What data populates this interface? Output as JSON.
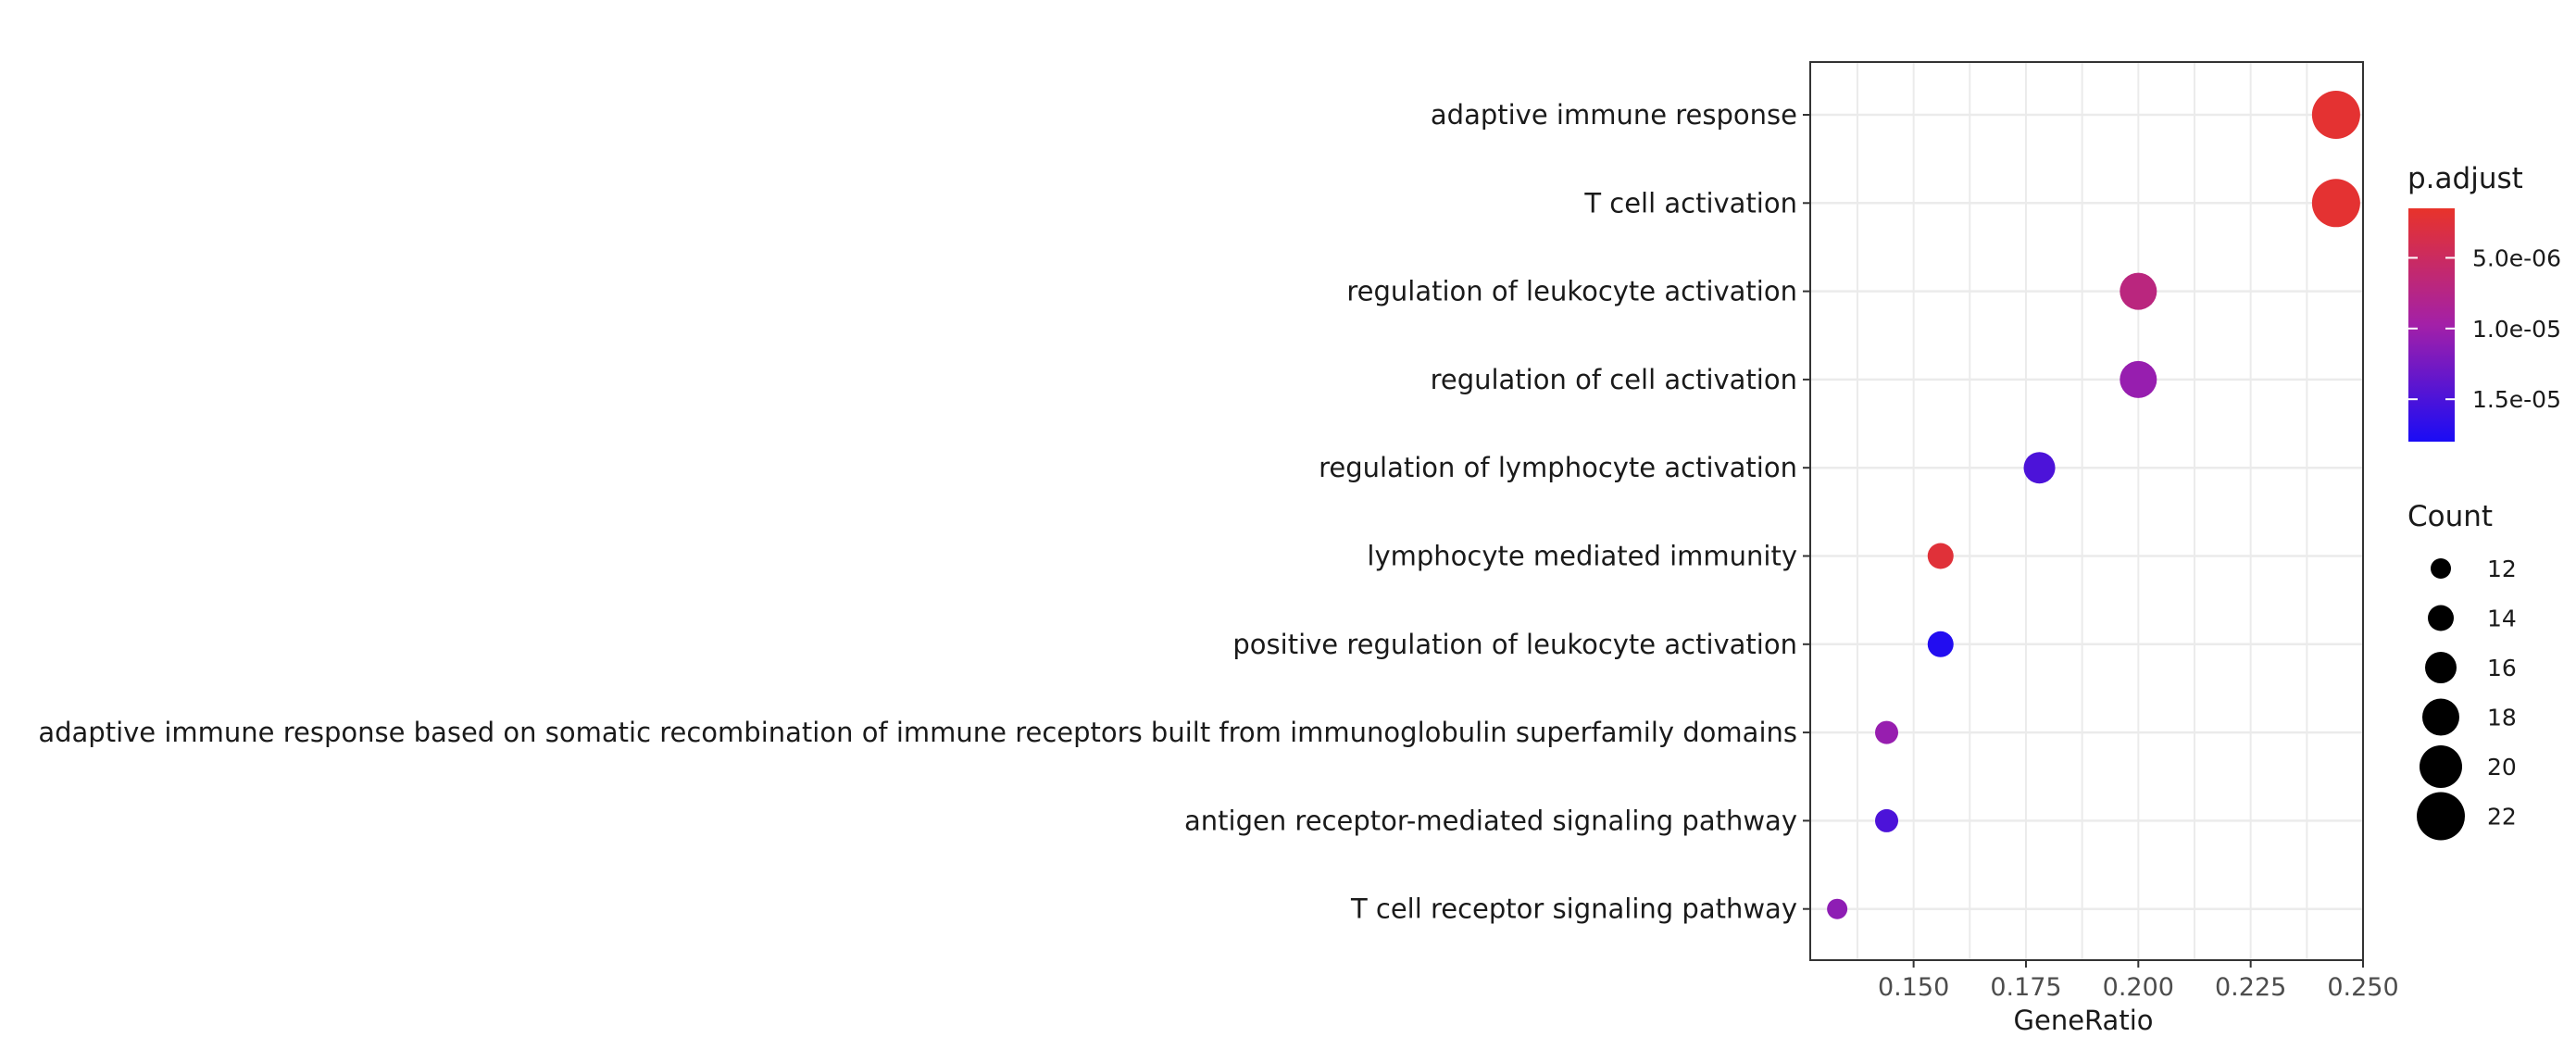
{
  "chart_data": {
    "type": "scatter",
    "xlabel": "GeneRatio",
    "ylabel": "",
    "xlim": [
      0.127,
      0.25
    ],
    "x_ticks": [
      "0.150",
      "0.175",
      "0.200",
      "0.225",
      "0.250"
    ],
    "x_tick_values": [
      0.15,
      0.175,
      0.2,
      0.225,
      0.25
    ],
    "grid": true,
    "points": [
      {
        "term": "adaptive immune response",
        "gene_ratio": 0.244,
        "count": 22,
        "p_adjust": 2e-06
      },
      {
        "term": "T cell activation",
        "gene_ratio": 0.244,
        "count": 22,
        "p_adjust": 2e-06
      },
      {
        "term": "regulation of leukocyte activation",
        "gene_ratio": 0.2,
        "count": 18,
        "p_adjust": 7e-06
      },
      {
        "term": "regulation of cell activation",
        "gene_ratio": 0.2,
        "count": 18,
        "p_adjust": 1.05e-05
      },
      {
        "term": "regulation of lymphocyte activation",
        "gene_ratio": 0.178,
        "count": 16,
        "p_adjust": 1.5e-05
      },
      {
        "term": "lymphocyte mediated immunity",
        "gene_ratio": 0.156,
        "count": 14,
        "p_adjust": 2.5e-06
      },
      {
        "term": "positive regulation of leukocyte activation",
        "gene_ratio": 0.156,
        "count": 14,
        "p_adjust": 1.75e-05
      },
      {
        "term": "adaptive immune response based on somatic recombination of immune receptors built from immunoglobulin superfamily domains",
        "gene_ratio": 0.144,
        "count": 13,
        "p_adjust": 1.05e-05
      },
      {
        "term": "antigen receptor-mediated signaling pathway",
        "gene_ratio": 0.144,
        "count": 13,
        "p_adjust": 1.5e-05
      },
      {
        "term": "T cell receptor signaling pathway",
        "gene_ratio": 0.133,
        "count": 12,
        "p_adjust": 1.1e-05
      }
    ],
    "color_legend": {
      "title": "p.adjust",
      "labels": [
        "5.0e-06",
        "1.0e-05",
        "1.5e-05"
      ],
      "values": [
        5e-06,
        1e-05,
        1.5e-05
      ],
      "range": [
        1.5e-06,
        1.8e-05
      ],
      "low_color": "#e8332a",
      "high_color": "#1a0cf5"
    },
    "size_legend": {
      "title": "Count",
      "values": [
        12,
        14,
        16,
        18,
        20,
        22
      ],
      "labels": [
        "12",
        "14",
        "16",
        "18",
        "20",
        "22"
      ]
    },
    "legend_position": "right"
  }
}
